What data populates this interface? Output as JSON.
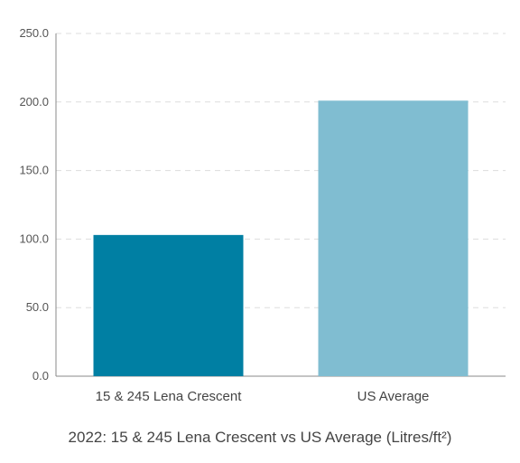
{
  "chart_data": {
    "type": "bar",
    "categories": [
      "15 & 245 Lena Crescent",
      "US Average"
    ],
    "values": [
      103.0,
      201.0
    ],
    "bar_colors": [
      "#007fa3",
      "#80bdd1"
    ],
    "ylim": [
      0,
      250
    ],
    "yticks": [
      "0.0",
      "50.0",
      "100.0",
      "150.0",
      "200.0",
      "250.0"
    ],
    "ytick_values": [
      0,
      50,
      100,
      150,
      200,
      250
    ],
    "caption": "2022: 15 & 245 Lena Crescent vs US Average (Litres/ft²)",
    "grid": true,
    "gridline_color": "#dddddd",
    "axis_color": "#888888"
  }
}
